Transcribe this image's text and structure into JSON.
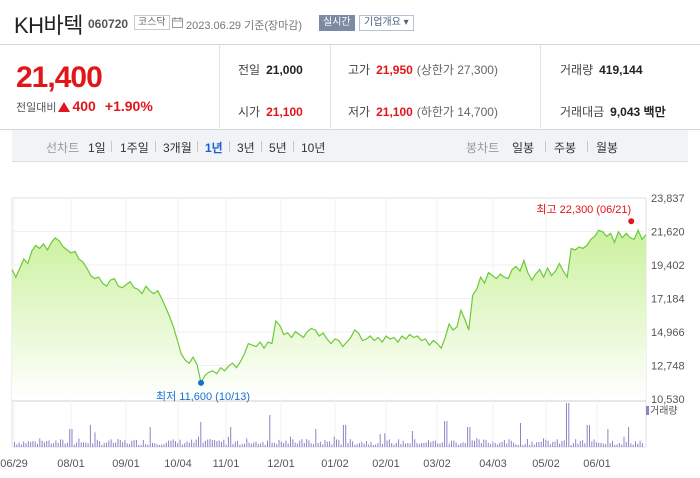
{
  "header": {
    "stock_name": "KH바텍",
    "stock_code": "060720",
    "market": "코스닥",
    "date_text": "2023.06.29  기준(장마감)",
    "realtime_label": "실시간",
    "company_button": "기업개요 ▾"
  },
  "price": {
    "current": "21,400",
    "change_label": "전일대비",
    "change_value": "400",
    "change_percent": "+1.90%"
  },
  "stats": {
    "prev_close": {
      "label": "전일",
      "value": "21,000"
    },
    "open": {
      "label": "시가",
      "value": "21,100"
    },
    "high": {
      "label": "고가",
      "value": "21,950",
      "sub": "(상한가 27,300)"
    },
    "low": {
      "label": "저가",
      "value": "21,100",
      "sub": "(하한가 14,700)"
    },
    "volume": {
      "label": "거래량",
      "value": "419,144"
    },
    "amount": {
      "label": "거래대금",
      "value": "9,043 백만"
    }
  },
  "periodbar": {
    "line_chart_label": "선차트",
    "line_periods": [
      "1일",
      "1주일",
      "3개월",
      "1년",
      "3년",
      "5년",
      "10년"
    ],
    "active_period": "1년",
    "candle_chart_label": "봉차트",
    "candle_periods": [
      "일봉",
      "주봉",
      "월봉"
    ]
  },
  "colors": {
    "up": "#e1161b",
    "active": "#1a5fd1",
    "line": "#6cc93a",
    "fill_top": "#c9f09a",
    "volume_bar": "#8c84c9"
  },
  "chart_data": {
    "type": "area",
    "y_ticks": [
      "23,837",
      "21,620",
      "19,402",
      "17,184",
      "14,966",
      "12,748",
      "10,530"
    ],
    "ylim": [
      10530,
      23837
    ],
    "x_ticks": [
      "06/29",
      "08/01",
      "09/01",
      "10/04",
      "11/01",
      "12/01",
      "01/02",
      "02/01",
      "03/02",
      "04/03",
      "05/02",
      "06/01"
    ],
    "high_annotation": "최고 22,300 (06/21)",
    "low_annotation": "최저 11,600 (10/13)",
    "volume_label": "거래량",
    "price_points": [
      [
        0,
        19100
      ],
      [
        4,
        18600
      ],
      [
        8,
        19200
      ],
      [
        12,
        19800
      ],
      [
        16,
        19500
      ],
      [
        20,
        20300
      ],
      [
        24,
        20700
      ],
      [
        28,
        20500
      ],
      [
        32,
        20800
      ],
      [
        36,
        20400
      ],
      [
        40,
        20900
      ],
      [
        44,
        21200
      ],
      [
        48,
        21000
      ],
      [
        52,
        20600
      ],
      [
        56,
        20400
      ],
      [
        60,
        20200
      ],
      [
        64,
        20300
      ],
      [
        68,
        19800
      ],
      [
        72,
        19600
      ],
      [
        76,
        19200
      ],
      [
        80,
        18700
      ],
      [
        84,
        18500
      ],
      [
        88,
        18600
      ],
      [
        92,
        18200
      ],
      [
        96,
        18000
      ],
      [
        100,
        18400
      ],
      [
        104,
        18500
      ],
      [
        108,
        18000
      ],
      [
        112,
        17900
      ],
      [
        116,
        18100
      ],
      [
        120,
        18300
      ],
      [
        124,
        17900
      ],
      [
        128,
        17800
      ],
      [
        132,
        17500
      ],
      [
        136,
        18000
      ],
      [
        140,
        17700
      ],
      [
        144,
        17500
      ],
      [
        148,
        17700
      ],
      [
        152,
        17200
      ],
      [
        156,
        16600
      ],
      [
        160,
        16000
      ],
      [
        164,
        15300
      ],
      [
        168,
        14400
      ],
      [
        172,
        13500
      ],
      [
        176,
        13100
      ],
      [
        180,
        12900
      ],
      [
        184,
        13300
      ],
      [
        188,
        12800
      ],
      [
        192,
        11600
      ],
      [
        196,
        12100
      ],
      [
        200,
        12300
      ],
      [
        204,
        12400
      ],
      [
        208,
        12200
      ],
      [
        212,
        12600
      ],
      [
        216,
        12400
      ],
      [
        220,
        12700
      ],
      [
        224,
        12900
      ],
      [
        228,
        12600
      ],
      [
        232,
        13000
      ],
      [
        236,
        13500
      ],
      [
        240,
        14200
      ],
      [
        244,
        14100
      ],
      [
        248,
        14000
      ],
      [
        252,
        14300
      ],
      [
        256,
        13900
      ],
      [
        260,
        14300
      ],
      [
        264,
        14200
      ],
      [
        268,
        15700
      ],
      [
        272,
        15400
      ],
      [
        276,
        14800
      ],
      [
        280,
        14900
      ],
      [
        284,
        14600
      ],
      [
        288,
        15000
      ],
      [
        292,
        14800
      ],
      [
        296,
        14600
      ],
      [
        300,
        15000
      ],
      [
        304,
        15200
      ],
      [
        308,
        15100
      ],
      [
        312,
        14700
      ],
      [
        316,
        14900
      ],
      [
        320,
        14500
      ],
      [
        324,
        14200
      ],
      [
        328,
        14500
      ],
      [
        332,
        14400
      ],
      [
        336,
        14000
      ],
      [
        340,
        14300
      ],
      [
        344,
        14600
      ],
      [
        348,
        15100
      ],
      [
        352,
        14900
      ],
      [
        356,
        14400
      ],
      [
        360,
        14500
      ],
      [
        364,
        14700
      ],
      [
        368,
        14400
      ],
      [
        372,
        14600
      ],
      [
        376,
        14300
      ],
      [
        380,
        14700
      ],
      [
        384,
        14500
      ],
      [
        388,
        14600
      ],
      [
        392,
        14300
      ],
      [
        396,
        14700
      ],
      [
        400,
        14500
      ],
      [
        404,
        14800
      ],
      [
        408,
        14600
      ],
      [
        412,
        14700
      ],
      [
        416,
        14400
      ],
      [
        420,
        14500
      ],
      [
        424,
        14100
      ],
      [
        428,
        14400
      ],
      [
        432,
        14200
      ],
      [
        436,
        13900
      ],
      [
        440,
        14600
      ],
      [
        444,
        15500
      ],
      [
        448,
        15100
      ],
      [
        452,
        15300
      ],
      [
        456,
        16400
      ],
      [
        460,
        15800
      ],
      [
        464,
        15100
      ],
      [
        468,
        17400
      ],
      [
        472,
        17800
      ],
      [
        476,
        18600
      ],
      [
        480,
        18200
      ],
      [
        484,
        18900
      ],
      [
        488,
        18700
      ],
      [
        492,
        18500
      ],
      [
        496,
        18800
      ],
      [
        500,
        18600
      ],
      [
        504,
        18500
      ],
      [
        508,
        19100
      ],
      [
        512,
        19300
      ],
      [
        516,
        19000
      ],
      [
        520,
        19700
      ],
      [
        524,
        18900
      ],
      [
        528,
        18400
      ],
      [
        532,
        18800
      ],
      [
        536,
        19100
      ],
      [
        540,
        18600
      ],
      [
        544,
        19200
      ],
      [
        548,
        18700
      ],
      [
        552,
        19000
      ],
      [
        556,
        19500
      ],
      [
        560,
        19000
      ],
      [
        564,
        18600
      ],
      [
        568,
        20500
      ],
      [
        572,
        20400
      ],
      [
        576,
        20600
      ],
      [
        580,
        20500
      ],
      [
        584,
        20700
      ],
      [
        588,
        21100
      ],
      [
        592,
        21300
      ],
      [
        596,
        21700
      ],
      [
        600,
        21600
      ],
      [
        604,
        21300
      ],
      [
        608,
        21500
      ],
      [
        612,
        20900
      ],
      [
        616,
        21600
      ],
      [
        620,
        21200
      ],
      [
        624,
        21500
      ],
      [
        628,
        21200
      ],
      [
        632,
        21100
      ],
      [
        636,
        21700
      ],
      [
        640,
        21100
      ],
      [
        644,
        21400
      ]
    ],
    "high_point": [
      629,
      22300
    ],
    "low_point": [
      192,
      11600
    ]
  }
}
